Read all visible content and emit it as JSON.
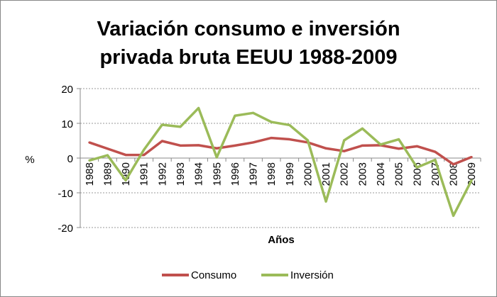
{
  "chart_data": {
    "type": "line",
    "title_lines": [
      "Variación consumo e inversión",
      "privada bruta EEUU 1988-2009"
    ],
    "xlabel": "Años",
    "ylabel": "%",
    "ylim": [
      -20,
      20
    ],
    "yticks": [
      20,
      10,
      0,
      -10,
      -20
    ],
    "grid": true,
    "legend_position": "bottom",
    "categories": [
      "1988",
      "1989",
      "1990",
      "1991",
      "1992",
      "1993",
      "1994",
      "1995",
      "1996",
      "1997",
      "1998",
      "1999",
      "2000",
      "2001",
      "2002",
      "2003",
      "2004",
      "2005",
      "2006",
      "2007",
      "2008",
      "2009"
    ],
    "series": [
      {
        "name": "Consumo",
        "color": "#c0504d",
        "values": [
          4.5,
          2.7,
          0.9,
          0.9,
          4.9,
          3.6,
          3.7,
          2.8,
          3.6,
          4.5,
          5.8,
          5.4,
          4.5,
          2.8,
          2.0,
          3.6,
          3.7,
          2.7,
          3.4,
          1.8,
          -1.8,
          0.3
        ]
      },
      {
        "name": "Inversión",
        "color": "#9bbb59",
        "values": [
          -0.7,
          0.8,
          -6.4,
          2.4,
          9.6,
          9.0,
          14.4,
          0.2,
          12.2,
          13.0,
          10.4,
          9.5,
          5.1,
          -12.5,
          5.1,
          8.5,
          3.9,
          5.4,
          -2.7,
          -0.5,
          -16.6,
          -6.4
        ]
      }
    ]
  }
}
